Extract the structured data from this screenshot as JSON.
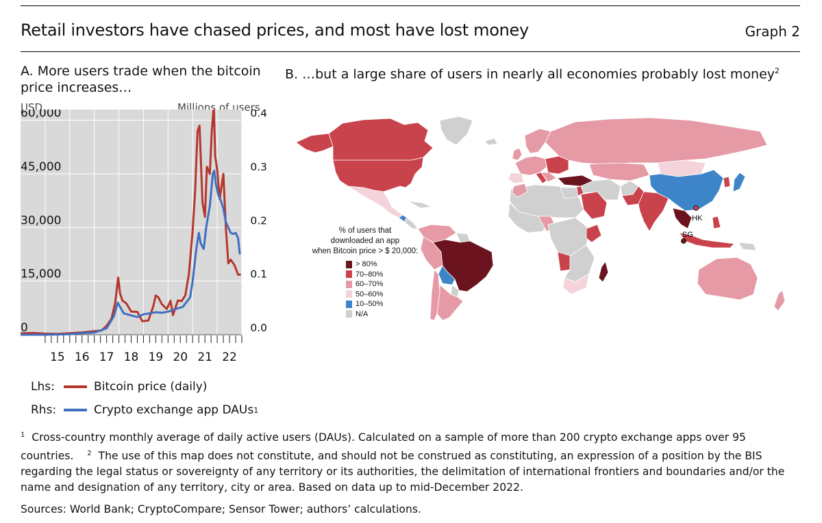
{
  "header": {
    "title": "Retail investors have chased prices, and most have lost money",
    "graph_label": "Graph 2"
  },
  "panel_a": {
    "title": "A. More users trade when the bitcoin price increases…",
    "left_unit": "USD",
    "right_unit": "Millions of users",
    "legend": [
      {
        "side": "Lhs:",
        "label": "Bitcoin price (daily)",
        "sup": "",
        "color": "#b5362c"
      },
      {
        "side": "Rhs:",
        "label": "Crypto exchange app DAUs",
        "sup": "1",
        "color": "#3f6fbf"
      }
    ]
  },
  "panel_b": {
    "title": "B. …but a large share of users in nearly all economies probably lost money",
    "title_sup": "2",
    "legend_title_lines": [
      "% of users that",
      "downloaded an app",
      "when Bitcoin price > $ 20,000:"
    ],
    "legend_items": [
      {
        "label": "> 80%",
        "color": "#6b1420"
      },
      {
        "label": "70–80%",
        "color": "#c9434d"
      },
      {
        "label": "60–70%",
        "color": "#e59aa5"
      },
      {
        "label": "50–60%",
        "color": "#f5d3da"
      },
      {
        "label": "10–50%",
        "color": "#3d85c8"
      },
      {
        "label": "N/A",
        "color": "#d0d0d0"
      }
    ],
    "markers": [
      "HK",
      "SG"
    ]
  },
  "chart_data": {
    "type": "line",
    "title": "A. More users trade when the bitcoin price increases…",
    "x_tick_labels": [
      "15",
      "16",
      "17",
      "18",
      "19",
      "20",
      "21",
      "22"
    ],
    "xlim": [
      2014.0,
      2023.0
    ],
    "y_left": {
      "unit": "USD",
      "ticks": [
        "0",
        "15,000",
        "30,000",
        "45,000",
        "60,000"
      ],
      "lim": [
        0,
        63000
      ]
    },
    "y_right": {
      "unit": "Millions of users",
      "ticks": [
        "0.0",
        "0.1",
        "0.2",
        "0.3",
        "0.4"
      ],
      "lim": [
        0,
        0.42
      ]
    },
    "grid": true,
    "series": [
      {
        "name": "Bitcoin price (daily)",
        "axis": "left",
        "color": "#b5362c",
        "points": [
          [
            2014.0,
            400
          ],
          [
            2014.5,
            500
          ],
          [
            2015.0,
            300
          ],
          [
            2015.5,
            250
          ],
          [
            2016.0,
            420
          ],
          [
            2016.5,
            650
          ],
          [
            2017.0,
            1000
          ],
          [
            2017.3,
            1200
          ],
          [
            2017.5,
            2500
          ],
          [
            2017.7,
            4500
          ],
          [
            2017.85,
            9000
          ],
          [
            2017.97,
            16000
          ],
          [
            2018.05,
            11500
          ],
          [
            2018.15,
            9500
          ],
          [
            2018.3,
            8800
          ],
          [
            2018.5,
            6500
          ],
          [
            2018.75,
            6400
          ],
          [
            2018.95,
            3800
          ],
          [
            2019.2,
            4000
          ],
          [
            2019.4,
            8000
          ],
          [
            2019.5,
            11000
          ],
          [
            2019.6,
            10500
          ],
          [
            2019.75,
            8500
          ],
          [
            2019.95,
            7200
          ],
          [
            2020.1,
            9500
          ],
          [
            2020.2,
            5500
          ],
          [
            2020.4,
            9600
          ],
          [
            2020.55,
            9400
          ],
          [
            2020.7,
            11000
          ],
          [
            2020.85,
            17000
          ],
          [
            2021.0,
            29000
          ],
          [
            2021.1,
            40000
          ],
          [
            2021.2,
            57000
          ],
          [
            2021.28,
            58500
          ],
          [
            2021.4,
            37000
          ],
          [
            2021.5,
            33000
          ],
          [
            2021.58,
            47000
          ],
          [
            2021.7,
            45000
          ],
          [
            2021.78,
            57000
          ],
          [
            2021.86,
            64000
          ],
          [
            2021.92,
            50000
          ],
          [
            2022.0,
            46000
          ],
          [
            2022.1,
            38000
          ],
          [
            2022.25,
            45000
          ],
          [
            2022.35,
            30000
          ],
          [
            2022.45,
            20000
          ],
          [
            2022.55,
            21000
          ],
          [
            2022.7,
            19500
          ],
          [
            2022.85,
            16800
          ],
          [
            2022.96,
            16800
          ]
        ]
      },
      {
        "name": "Crypto exchange app DAUs",
        "axis": "right",
        "color": "#3f6fbf",
        "points": [
          [
            2014.0,
            0.0
          ],
          [
            2015.0,
            0.0
          ],
          [
            2016.0,
            0.001
          ],
          [
            2016.5,
            0.003
          ],
          [
            2017.0,
            0.004
          ],
          [
            2017.5,
            0.012
          ],
          [
            2017.8,
            0.035
          ],
          [
            2017.95,
            0.06
          ],
          [
            2018.05,
            0.052
          ],
          [
            2018.2,
            0.04
          ],
          [
            2018.5,
            0.036
          ],
          [
            2018.75,
            0.033
          ],
          [
            2019.0,
            0.038
          ],
          [
            2019.5,
            0.042
          ],
          [
            2019.75,
            0.041
          ],
          [
            2020.0,
            0.043
          ],
          [
            2020.3,
            0.048
          ],
          [
            2020.6,
            0.052
          ],
          [
            2020.9,
            0.07
          ],
          [
            2021.0,
            0.1
          ],
          [
            2021.15,
            0.16
          ],
          [
            2021.25,
            0.19
          ],
          [
            2021.33,
            0.17
          ],
          [
            2021.45,
            0.16
          ],
          [
            2021.55,
            0.2
          ],
          [
            2021.7,
            0.24
          ],
          [
            2021.82,
            0.3
          ],
          [
            2021.88,
            0.306
          ],
          [
            2021.95,
            0.28
          ],
          [
            2022.05,
            0.26
          ],
          [
            2022.15,
            0.25
          ],
          [
            2022.25,
            0.235
          ],
          [
            2022.35,
            0.21
          ],
          [
            2022.45,
            0.2
          ],
          [
            2022.55,
            0.19
          ],
          [
            2022.65,
            0.188
          ],
          [
            2022.75,
            0.19
          ],
          [
            2022.85,
            0.18
          ],
          [
            2022.92,
            0.15
          ]
        ]
      }
    ]
  },
  "footnotes": {
    "fn1_mark": "1",
    "fn1": "Cross-country monthly average of daily active users (DAUs). Calculated on a sample of more than 200 crypto exchange apps over 95 countries.",
    "fn2_mark": "2",
    "fn2": "The use of this map does not constitute, and should not be construed as constituting, an expression of a position by the BIS regarding the legal status or sovereignty of any territory or its authorities, the delimitation of international frontiers and boundaries and/or the name and designation of any territory, city or area. Based on data up to mid-December 2022."
  },
  "sources": "Sources: World Bank; CryptoCompare; Sensor Tower; authors’ calculations."
}
